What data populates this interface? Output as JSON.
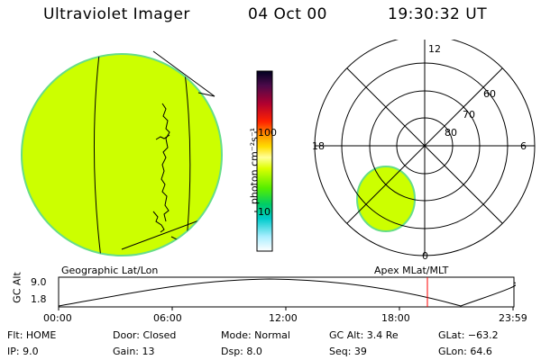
{
  "header": {
    "instrument": "Ultraviolet Imager",
    "date": "04 Oct 00",
    "time": "19:30:32 UT"
  },
  "globe": {
    "fill_color": "#ccff00",
    "edge_color": "#66dd88"
  },
  "colorbar": {
    "unit_label": "photon cm⁻²s⁻¹",
    "tick_100": "100",
    "tick_10": "10",
    "scale": "log"
  },
  "polar": {
    "mlt_12": "12",
    "mlt_18": "18",
    "mlt_6": "6",
    "mlt_0": "0",
    "lat_60": "60",
    "lat_70": "70",
    "lat_80": "80"
  },
  "panel_labels": {
    "left": "Geographic Lat/Lon",
    "right": "Apex MLat/MLT"
  },
  "altitude_plot": {
    "y_label": "GC Alt",
    "y_max": "9.0",
    "y_min": "1.8",
    "x_ticks": [
      "00:00",
      "06:00",
      "12:00",
      "18:00",
      "23:59"
    ],
    "current_time_marker_color": "#ff0000"
  },
  "info": {
    "flt": "Flt: HOME",
    "ip": "IP:  9.0",
    "door": "Door: Closed",
    "gain": "Gain: 13",
    "mode": "Mode: Normal",
    "dsp": "Dsp:    8.0",
    "gc_alt": "GC Alt: 3.4 Re",
    "seq": "Seq: 39",
    "glat": "GLat:  −63.2",
    "glon": "GLon:  64.6"
  }
}
